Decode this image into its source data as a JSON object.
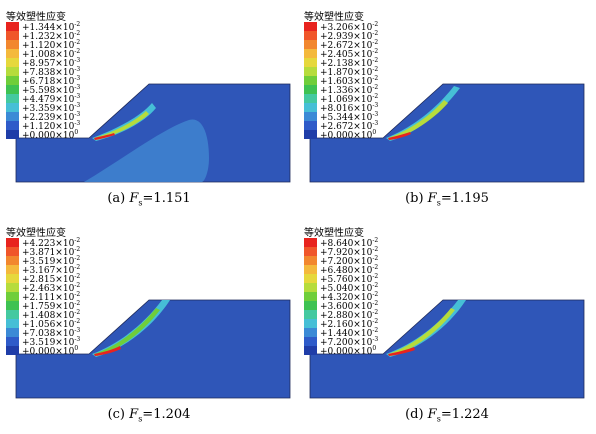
{
  "panels": [
    {
      "legend_title": "等效塑性应变",
      "caption_label": "(a)",
      "caption_symbol": "F",
      "caption_sub": "s",
      "caption_value": "=1.151",
      "legend": [
        {
          "m": "+1.344",
          "e": "-2"
        },
        {
          "m": "+1.232",
          "e": "-2"
        },
        {
          "m": "+1.120",
          "e": "-2"
        },
        {
          "m": "+1.008",
          "e": "-2"
        },
        {
          "m": "+8.957",
          "e": "-3"
        },
        {
          "m": "+7.838",
          "e": "-3"
        },
        {
          "m": "+6.718",
          "e": "-3"
        },
        {
          "m": "+5.598",
          "e": "-3"
        },
        {
          "m": "+4.479",
          "e": "-3"
        },
        {
          "m": "+3.359",
          "e": "-3"
        },
        {
          "m": "+2.239",
          "e": "-3"
        },
        {
          "m": "+1.120",
          "e": "-3"
        },
        {
          "m": "+0.000",
          "e": "0"
        }
      ]
    },
    {
      "legend_title": "等效塑性应变",
      "caption_label": "(b)",
      "caption_symbol": "F",
      "caption_sub": "s",
      "caption_value": "=1.195",
      "legend": [
        {
          "m": "+3.206",
          "e": "-2"
        },
        {
          "m": "+2.939",
          "e": "-2"
        },
        {
          "m": "+2.672",
          "e": "-2"
        },
        {
          "m": "+2.405",
          "e": "-2"
        },
        {
          "m": "+2.138",
          "e": "-2"
        },
        {
          "m": "+1.870",
          "e": "-2"
        },
        {
          "m": "+1.603",
          "e": "-2"
        },
        {
          "m": "+1.336",
          "e": "-2"
        },
        {
          "m": "+1.069",
          "e": "-2"
        },
        {
          "m": "+8.016",
          "e": "-3"
        },
        {
          "m": "+5.344",
          "e": "-3"
        },
        {
          "m": "+2.672",
          "e": "-3"
        },
        {
          "m": "+0.000",
          "e": "0"
        }
      ]
    },
    {
      "legend_title": "等效塑性应变",
      "caption_label": "(c)",
      "caption_symbol": "F",
      "caption_sub": "s",
      "caption_value": "=1.204",
      "legend": [
        {
          "m": "+4.223",
          "e": "-2"
        },
        {
          "m": "+3.871",
          "e": "-2"
        },
        {
          "m": "+3.519",
          "e": "-2"
        },
        {
          "m": "+3.167",
          "e": "-2"
        },
        {
          "m": "+2.815",
          "e": "-2"
        },
        {
          "m": "+2.463",
          "e": "-2"
        },
        {
          "m": "+2.111",
          "e": "-2"
        },
        {
          "m": "+1.759",
          "e": "-2"
        },
        {
          "m": "+1.408",
          "e": "-2"
        },
        {
          "m": "+1.056",
          "e": "-2"
        },
        {
          "m": "+7.038",
          "e": "-3"
        },
        {
          "m": "+3.519",
          "e": "-3"
        },
        {
          "m": "+0.000",
          "e": "0"
        }
      ]
    },
    {
      "legend_title": "等效塑性应变",
      "caption_label": "(d)",
      "caption_symbol": "F",
      "caption_sub": "s",
      "caption_value": "=1.224",
      "legend": [
        {
          "m": "+8.640",
          "e": "-2"
        },
        {
          "m": "+7.920",
          "e": "-2"
        },
        {
          "m": "+7.200",
          "e": "-2"
        },
        {
          "m": "+6.480",
          "e": "-2"
        },
        {
          "m": "+5.760",
          "e": "-2"
        },
        {
          "m": "+5.040",
          "e": "-2"
        },
        {
          "m": "+4.320",
          "e": "-2"
        },
        {
          "m": "+3.600",
          "e": "-2"
        },
        {
          "m": "+2.880",
          "e": "-2"
        },
        {
          "m": "+2.160",
          "e": "-2"
        },
        {
          "m": "+1.440",
          "e": "-2"
        },
        {
          "m": "+7.200",
          "e": "-3"
        },
        {
          "m": "+0.000",
          "e": "0"
        }
      ]
    }
  ],
  "colors": {
    "legend_scale": [
      "#e8231e",
      "#f0562a",
      "#f2872e",
      "#f4b93c",
      "#e6d83c",
      "#b6dc3c",
      "#6fce3a",
      "#3ec252",
      "#44c9a0",
      "#46bfd6",
      "#3b8ad6",
      "#2e5bc9",
      "#1f3da8"
    ],
    "slope_body": "#2f56b8",
    "outline": "#1e2a5a",
    "diffuse_zone": "#3f84cf"
  }
}
